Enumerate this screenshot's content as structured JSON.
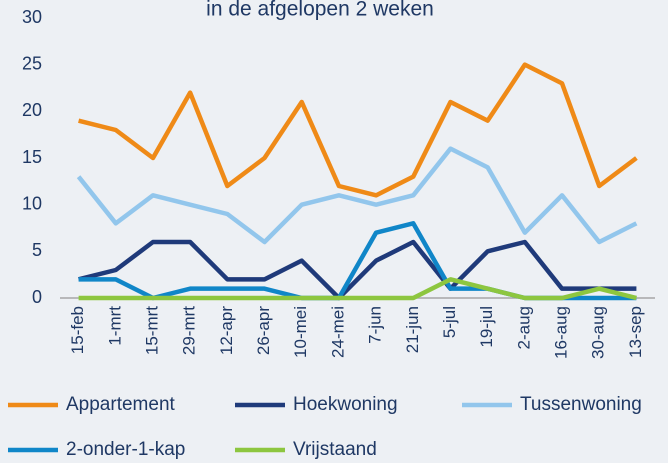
{
  "chart_data": {
    "type": "line",
    "title": "in de afgelopen 2 weken",
    "categories": [
      "15-feb",
      "1-mrt",
      "15-mrt",
      "29-mrt",
      "12-apr",
      "26-apr",
      "10-mei",
      "24-mei",
      "7-jun",
      "21-jun",
      "5-jul",
      "19-jul",
      "2-aug",
      "16-aug",
      "30-aug",
      "13-sep"
    ],
    "series": [
      {
        "name": "Appartement",
        "color": "#ef8a17",
        "values": [
          19,
          18,
          15,
          22,
          12,
          15,
          21,
          12,
          11,
          13,
          21,
          19,
          25,
          23,
          12,
          15
        ]
      },
      {
        "name": "Hoekwoning",
        "color": "#1f3a7a",
        "values": [
          2,
          3,
          6,
          6,
          2,
          2,
          4,
          0,
          4,
          6,
          1,
          5,
          6,
          1,
          1,
          1
        ]
      },
      {
        "name": "Tussenwoning",
        "color": "#92c6ec",
        "values": [
          13,
          8,
          11,
          10,
          9,
          6,
          10,
          11,
          10,
          11,
          16,
          14,
          7,
          11,
          6,
          8
        ]
      },
      {
        "name": "2-onder-1-kap",
        "color": "#1086c8",
        "values": [
          2,
          2,
          0,
          1,
          1,
          1,
          0,
          0,
          7,
          8,
          1,
          1,
          0,
          0,
          0,
          0
        ]
      },
      {
        "name": "Vrijstaand",
        "color": "#8dc63f",
        "values": [
          0,
          0,
          0,
          0,
          0,
          0,
          0,
          0,
          0,
          0,
          2,
          1,
          0,
          0,
          1,
          0
        ]
      }
    ],
    "ylim": [
      0,
      30
    ],
    "yticks": [
      0,
      5,
      10,
      15,
      20,
      25,
      30
    ],
    "grid": false
  }
}
